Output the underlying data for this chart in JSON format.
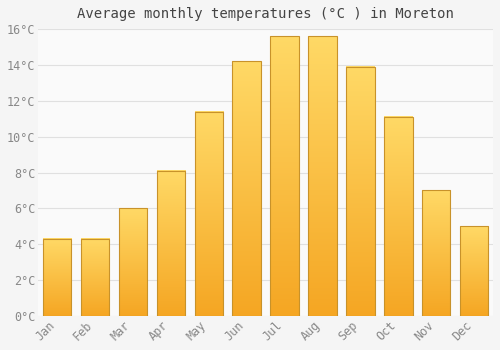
{
  "title": "Average monthly temperatures (°C ) in Moreton",
  "months": [
    "Jan",
    "Feb",
    "Mar",
    "Apr",
    "May",
    "Jun",
    "Jul",
    "Aug",
    "Sep",
    "Oct",
    "Nov",
    "Dec"
  ],
  "values": [
    4.3,
    4.3,
    6.0,
    8.1,
    11.4,
    14.2,
    15.6,
    15.6,
    13.9,
    11.1,
    7.0,
    5.0
  ],
  "bar_color_bottom": "#F5A623",
  "bar_color_top": "#FFD966",
  "bar_edge_color": "#C8922A",
  "background_color": "#F5F5F5",
  "plot_bg_color": "#FAFAFA",
  "grid_color": "#E0E0E0",
  "tick_label_color": "#888888",
  "title_color": "#444444",
  "ylim": [
    0,
    16
  ],
  "yticks": [
    0,
    2,
    4,
    6,
    8,
    10,
    12,
    14,
    16
  ],
  "ytick_labels": [
    "0°C",
    "2°C",
    "4°C",
    "6°C",
    "8°C",
    "10°C",
    "12°C",
    "14°C",
    "16°C"
  ],
  "title_fontsize": 10,
  "tick_fontsize": 8.5,
  "bar_width": 0.75
}
